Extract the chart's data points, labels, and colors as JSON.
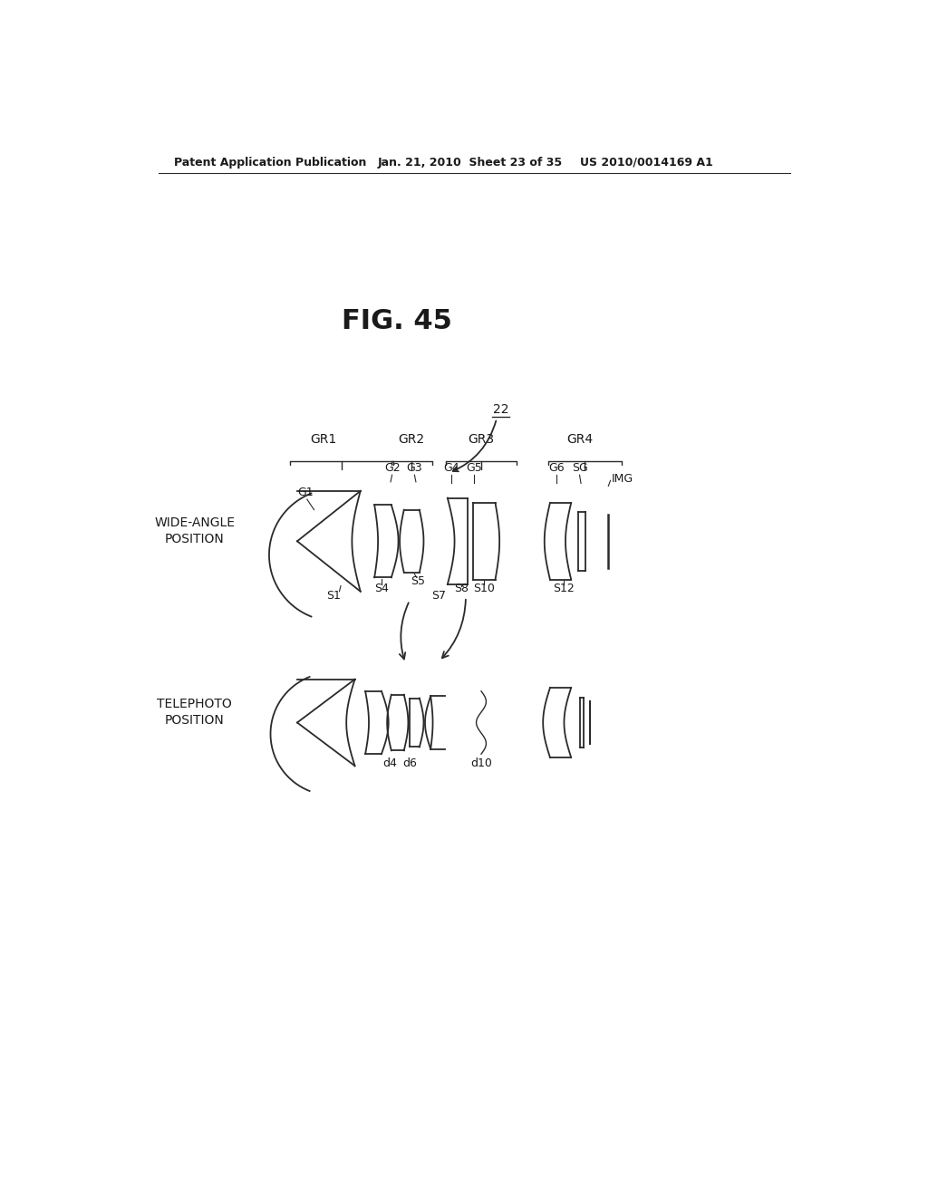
{
  "title": "FIG. 45",
  "header_left": "Patent Application Publication",
  "header_center": "Jan. 21, 2010  Sheet 23 of 35",
  "header_right": "US 2010/0014169 A1",
  "bg_color": "#ffffff",
  "line_color": "#2a2a2a",
  "font_color": "#1a1a1a",
  "label_22": "22",
  "label_GR1": "GR1",
  "label_GR2": "GR2",
  "label_GR3": "GR3",
  "label_GR4": "GR4",
  "label_G1": "G1",
  "label_G2": "G2",
  "label_G3": "G3",
  "label_G4": "G4",
  "label_G5": "G5",
  "label_G6": "G6",
  "label_SG": "SG",
  "label_IMG": "IMG",
  "label_S1": "S1",
  "label_S4": "S4",
  "label_S5": "S5",
  "label_S7": "S7",
  "label_S8": "S8",
  "label_S10": "S10",
  "label_S12": "S12",
  "label_d4": "d4",
  "label_d6": "d6",
  "label_d10": "d10",
  "label_wide": "WIDE-ANGLE\nPOSITION",
  "label_tele": "TELEPHOTO\nPOSITION"
}
